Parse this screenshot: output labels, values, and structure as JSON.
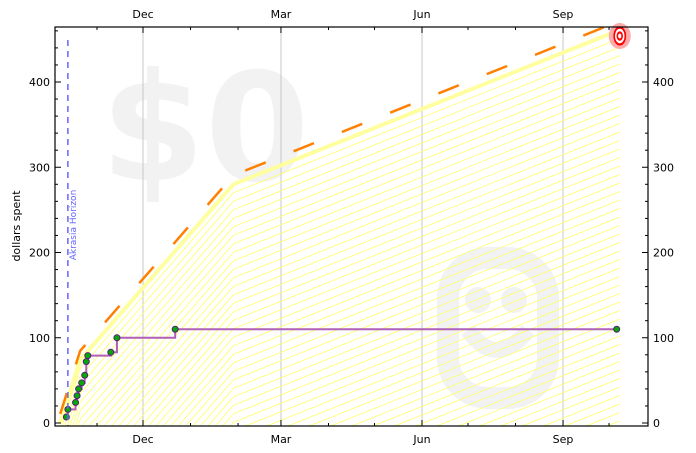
{
  "chart_data": {
    "type": "line",
    "title": "",
    "ylabel": "dollars spent",
    "ylim": [
      0,
      465
    ],
    "yticks": [
      0,
      100,
      200,
      300,
      400
    ],
    "xticks": [
      "Dec",
      "Mar",
      "Jun",
      "Sep"
    ],
    "xlim": [
      "Oct 5",
      "Oct 24"
    ],
    "grid": "vertical at labeled months",
    "watermark_amount": "$0",
    "akrasia_horizon": {
      "label": "Akrasia Horizon",
      "date": "Oct 13"
    },
    "road": {
      "x": [
        "Oct 8",
        "Oct 21",
        "Jan 29",
        "Oct 8"
      ],
      "y": [
        0,
        74,
        280,
        461
      ]
    },
    "datapoints": {
      "x": [
        "Oct 12",
        "Oct 13",
        "Oct 18",
        "Oct 19",
        "Oct 20",
        "Oct 22",
        "Oct 24",
        "Oct 25",
        "Oct 26",
        "Nov 10",
        "Nov 14",
        "Dec 22",
        "Oct 6"
      ],
      "y": [
        7,
        16,
        24,
        32,
        40,
        47,
        56,
        72,
        79,
        83,
        100,
        110,
        110
      ]
    },
    "colors": {
      "road_center": "#ff8000",
      "road_edge": "#ffffa0",
      "hatch": "#ffff66",
      "steps": "#b060b8",
      "points": "#00aa00",
      "point_outline": "#5a1f7a",
      "horizon": "#6666ff",
      "watermark": "#f2f2f2",
      "bullseye": "#ff0000"
    }
  }
}
